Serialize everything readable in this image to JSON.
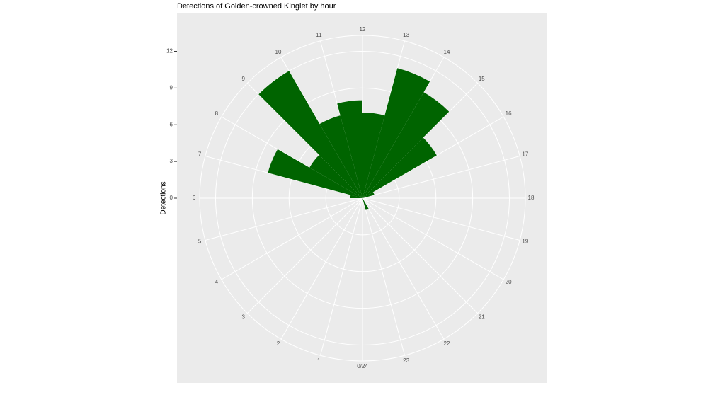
{
  "chart_data": {
    "type": "polar-bar",
    "title": "Detections of Golden-crowned Kinglet by hour",
    "y_label": "Detections",
    "x": [
      0,
      1,
      2,
      3,
      4,
      5,
      6,
      7,
      8,
      9,
      10,
      11,
      12,
      13,
      14,
      15,
      16,
      17,
      18,
      19,
      20,
      21,
      22,
      23
    ],
    "values": [
      0,
      0,
      0,
      0,
      0,
      0,
      1,
      8,
      5,
      12,
      7,
      8,
      7,
      11,
      10,
      7,
      1,
      0,
      0,
      0,
      0,
      0,
      1,
      0
    ],
    "color": "#006400",
    "xlim": [
      0,
      24
    ],
    "xticks": [
      {
        "value": 0,
        "label": "0/24"
      },
      1,
      2,
      3,
      4,
      5,
      6,
      7,
      8,
      9,
      10,
      11,
      12,
      13,
      14,
      15,
      16,
      17,
      18,
      19,
      20,
      21,
      22,
      23
    ],
    "ylim": [
      0,
      13.3
    ],
    "yticks": [
      0,
      3,
      6,
      9,
      12
    ],
    "grid": true
  }
}
